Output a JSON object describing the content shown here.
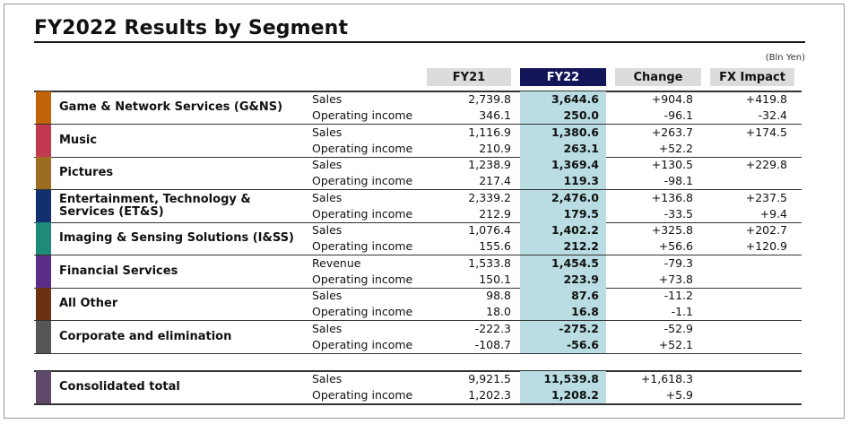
{
  "title": "FY2022 Results by Segment",
  "unit_note": "(Bln Yen)",
  "columns": {
    "fy21": "FY21",
    "fy22": "FY22",
    "change": "Change",
    "fx": "FX Impact"
  },
  "colors": {
    "fy22_header": "#14165a",
    "fy22_band": "#b9dde2",
    "header_grey": "#dcdcdc"
  },
  "segments": [
    {
      "name": "Game & Network Services (G&NS)",
      "color": "#c0640a",
      "rows": [
        {
          "label": "Sales",
          "fy21": "2,739.8",
          "fy22": "3,644.6",
          "change": "+904.8",
          "fx": "+419.8"
        },
        {
          "label": "Operating income",
          "fy21": "346.1",
          "fy22": "250.0",
          "change": "-96.1",
          "fx": "-32.4"
        }
      ]
    },
    {
      "name": "Music",
      "color": "#c23a50",
      "rows": [
        {
          "label": "Sales",
          "fy21": "1,116.9",
          "fy22": "1,380.6",
          "change": "+263.7",
          "fx": "+174.5"
        },
        {
          "label": "Operating income",
          "fy21": "210.9",
          "fy22": "263.1",
          "change": "+52.2",
          "fx": ""
        }
      ]
    },
    {
      "name": "Pictures",
      "color": "#9c6c22",
      "rows": [
        {
          "label": "Sales",
          "fy21": "1,238.9",
          "fy22": "1,369.4",
          "change": "+130.5",
          "fx": "+229.8"
        },
        {
          "label": "Operating income",
          "fy21": "217.4",
          "fy22": "119.3",
          "change": "-98.1",
          "fx": ""
        }
      ]
    },
    {
      "name": "Entertainment, Technology & Services (ET&S)",
      "color": "#12306e",
      "rows": [
        {
          "label": "Sales",
          "fy21": "2,339.2",
          "fy22": "2,476.0",
          "change": "+136.8",
          "fx": "+237.5"
        },
        {
          "label": "Operating income",
          "fy21": "212.9",
          "fy22": "179.5",
          "change": "-33.5",
          "fx": "+9.4"
        }
      ]
    },
    {
      "name": "Imaging & Sensing Solutions (I&SS)",
      "color": "#1f8a78",
      "rows": [
        {
          "label": "Sales",
          "fy21": "1,076.4",
          "fy22": "1,402.2",
          "change": "+325.8",
          "fx": "+202.7"
        },
        {
          "label": "Operating income",
          "fy21": "155.6",
          "fy22": "212.2",
          "change": "+56.6",
          "fx": "+120.9"
        }
      ]
    },
    {
      "name": "Financial Services",
      "color": "#5a2d86",
      "rows": [
        {
          "label": "Revenue",
          "fy21": "1,533.8",
          "fy22": "1,454.5",
          "change": "-79.3",
          "fx": ""
        },
        {
          "label": "Operating income",
          "fy21": "150.1",
          "fy22": "223.9",
          "change": "+73.8",
          "fx": ""
        }
      ]
    },
    {
      "name": "All Other",
      "color": "#6a3212",
      "rows": [
        {
          "label": "Sales",
          "fy21": "98.8",
          "fy22": "87.6",
          "change": "-11.2",
          "fx": ""
        },
        {
          "label": "Operating income",
          "fy21": "18.0",
          "fy22": "16.8",
          "change": "-1.1",
          "fx": ""
        }
      ]
    },
    {
      "name": "Corporate and elimination",
      "color": "#555555",
      "rows": [
        {
          "label": "Sales",
          "fy21": "-222.3",
          "fy22": "-275.2",
          "change": "-52.9",
          "fx": ""
        },
        {
          "label": "Operating income",
          "fy21": "-108.7",
          "fy22": "-56.6",
          "change": "+52.1",
          "fx": ""
        }
      ]
    }
  ],
  "total": {
    "name": "Consolidated total",
    "color": "#5e4a68",
    "rows": [
      {
        "label": "Sales",
        "fy21": "9,921.5",
        "fy22": "11,539.8",
        "change": "+1,618.3",
        "fx": ""
      },
      {
        "label": "Operating income",
        "fy21": "1,202.3",
        "fy22": "1,208.2",
        "change": "+5.9",
        "fx": ""
      }
    ]
  }
}
